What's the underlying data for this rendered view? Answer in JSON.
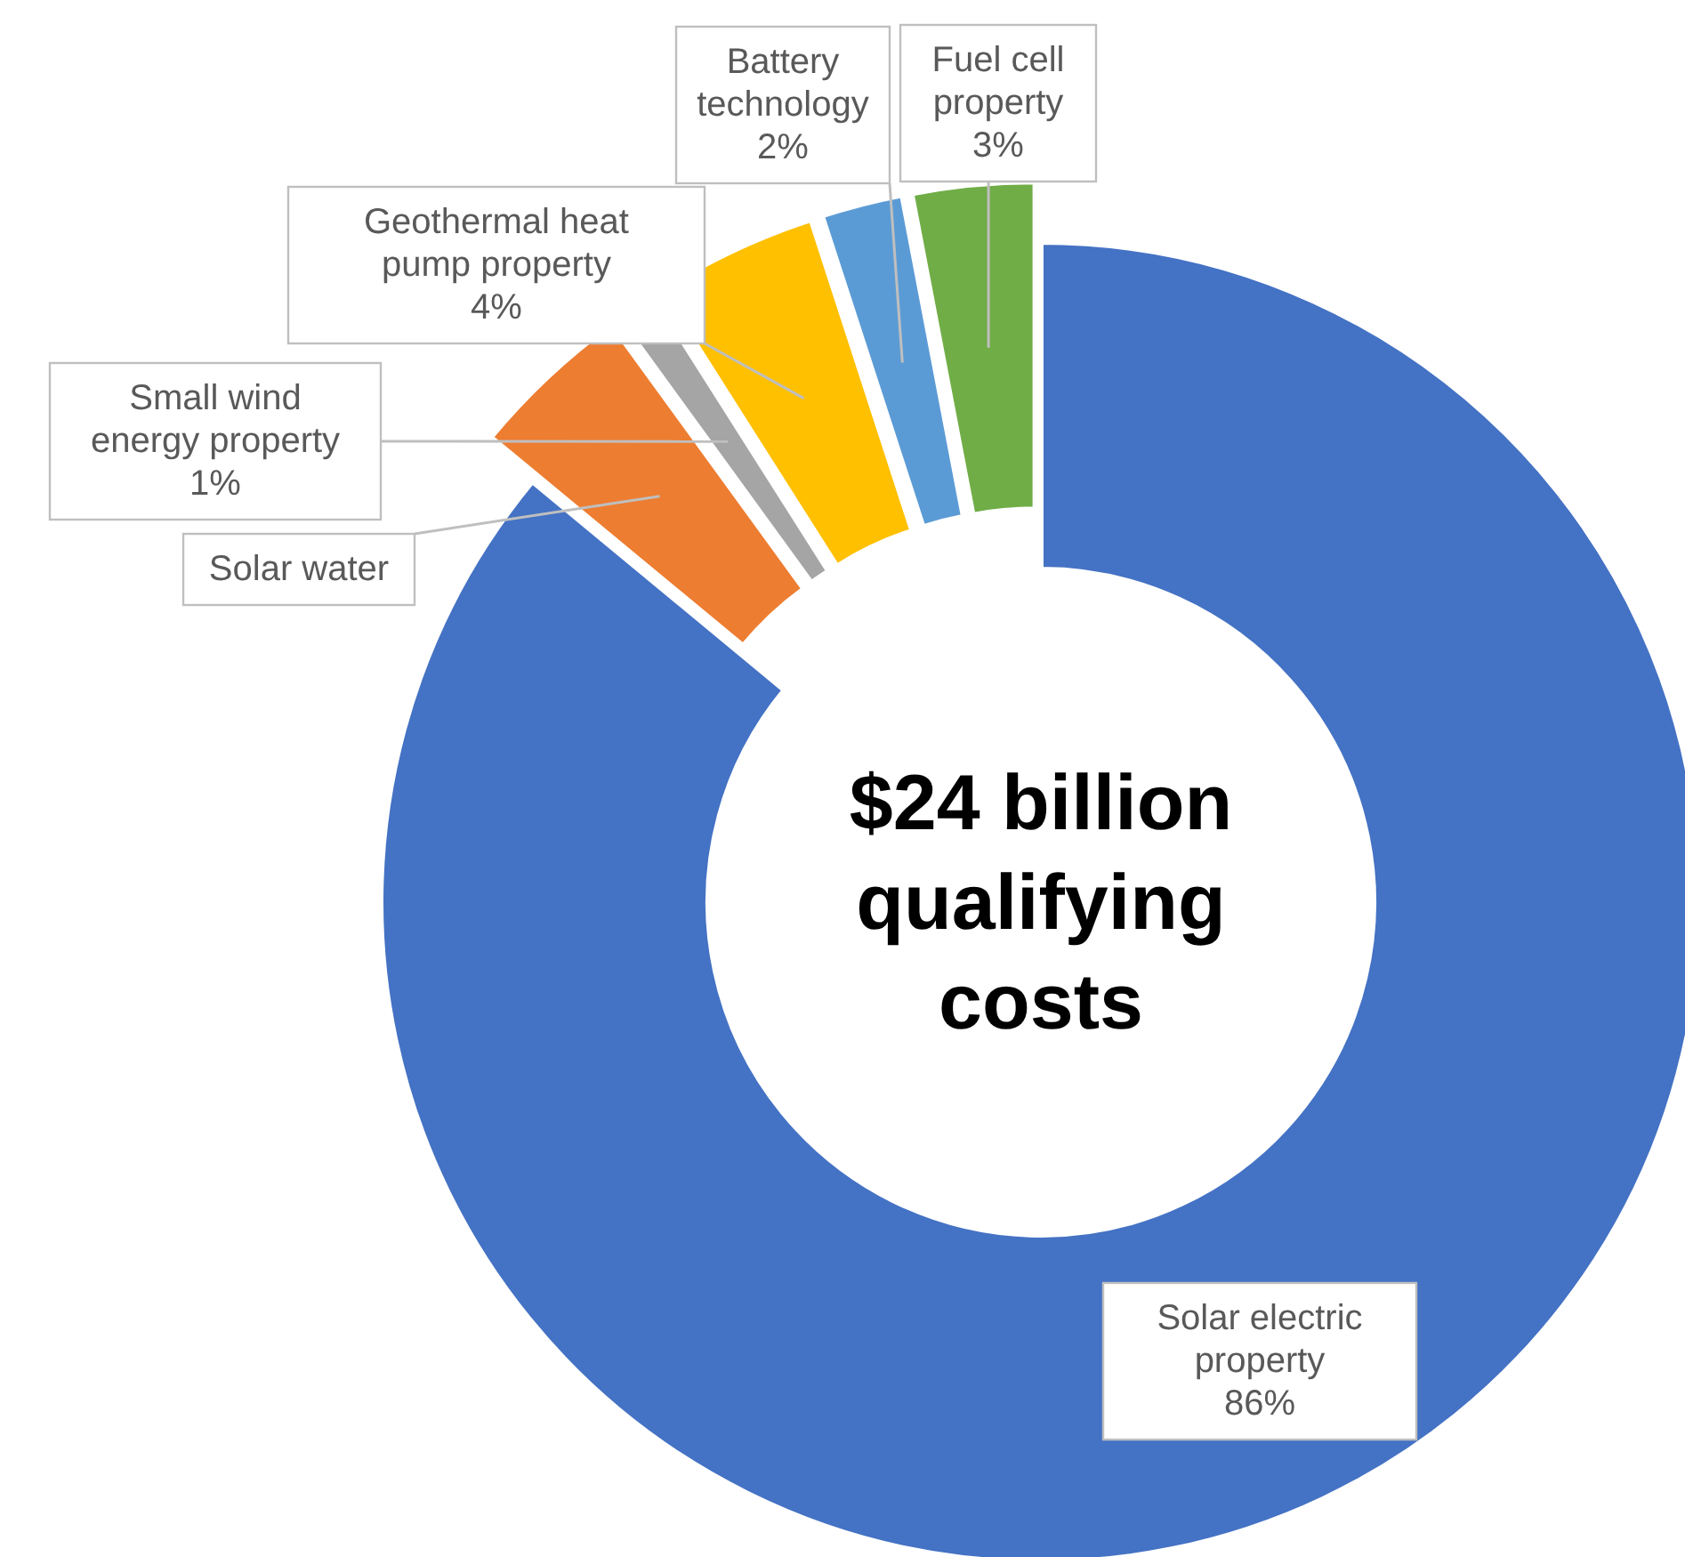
{
  "chart_data": {
    "type": "donut",
    "categories": [
      "Solar electric property",
      "Solar water",
      "Small wind energy property",
      "Geothermal heat pump property",
      "Battery technology",
      "Fuel cell property"
    ],
    "values": [
      86,
      4,
      1,
      4,
      2,
      3
    ],
    "colors": [
      "#4472c4",
      "#ed7d31",
      "#a5a5a5",
      "#ffc000",
      "#5b9bd5",
      "#70ad47"
    ],
    "value_labels": [
      "86%",
      null,
      "1%",
      "4%",
      "2%",
      "3%"
    ],
    "annotations": [
      "$24 billion qualifying costs"
    ]
  }
}
